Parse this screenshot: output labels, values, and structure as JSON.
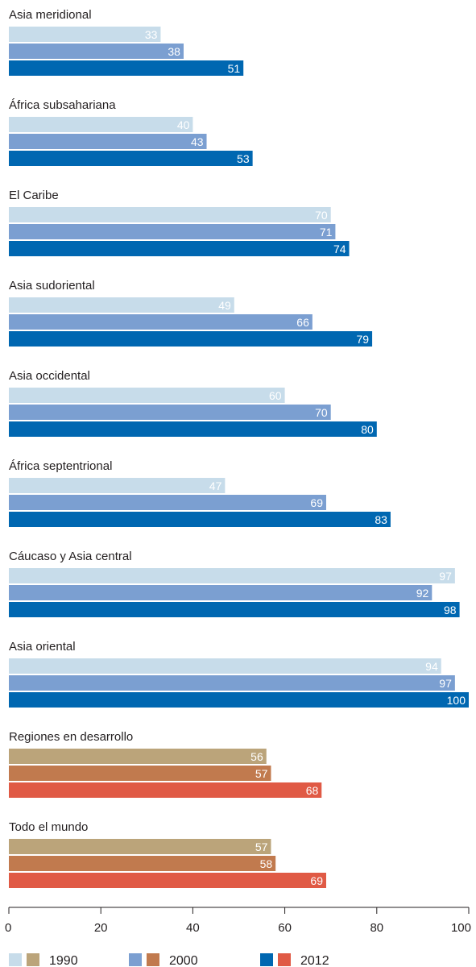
{
  "chart_data": {
    "type": "bar",
    "orientation": "horizontal",
    "xlim": [
      0,
      100
    ],
    "xticks": [
      "0",
      "20",
      "40",
      "60",
      "80",
      "100"
    ],
    "grid": false,
    "legend_position": "bottom",
    "years": [
      "1990",
      "2000",
      "2012"
    ],
    "groups": [
      {
        "name": "Asia meridional",
        "values": [
          33,
          38,
          51
        ],
        "palette": "region"
      },
      {
        "name": "África subsahariana",
        "values": [
          40,
          43,
          53
        ],
        "palette": "region"
      },
      {
        "name": "El Caribe",
        "values": [
          70,
          71,
          74
        ],
        "palette": "region"
      },
      {
        "name": "Asia sudoriental",
        "values": [
          49,
          66,
          79
        ],
        "palette": "region"
      },
      {
        "name": "Asia occidental",
        "values": [
          60,
          70,
          80
        ],
        "palette": "region"
      },
      {
        "name": "África septentrional",
        "values": [
          47,
          69,
          83
        ],
        "palette": "region"
      },
      {
        "name": "Cáucaso y Asia central",
        "values": [
          97,
          92,
          98
        ],
        "palette": "region"
      },
      {
        "name": "Asia oriental",
        "values": [
          94,
          97,
          100
        ],
        "palette": "region"
      },
      {
        "name": "Regiones en desarrollo",
        "values": [
          56,
          57,
          68
        ],
        "palette": "aggregate"
      },
      {
        "name": "Todo el mundo",
        "values": [
          57,
          58,
          69
        ],
        "palette": "aggregate"
      }
    ],
    "colors": {
      "region": [
        "#c7dcea",
        "#7b9fd1",
        "#0067b1"
      ],
      "aggregate": [
        "#bba47a",
        "#c17a4e",
        "#e05a45"
      ]
    }
  }
}
